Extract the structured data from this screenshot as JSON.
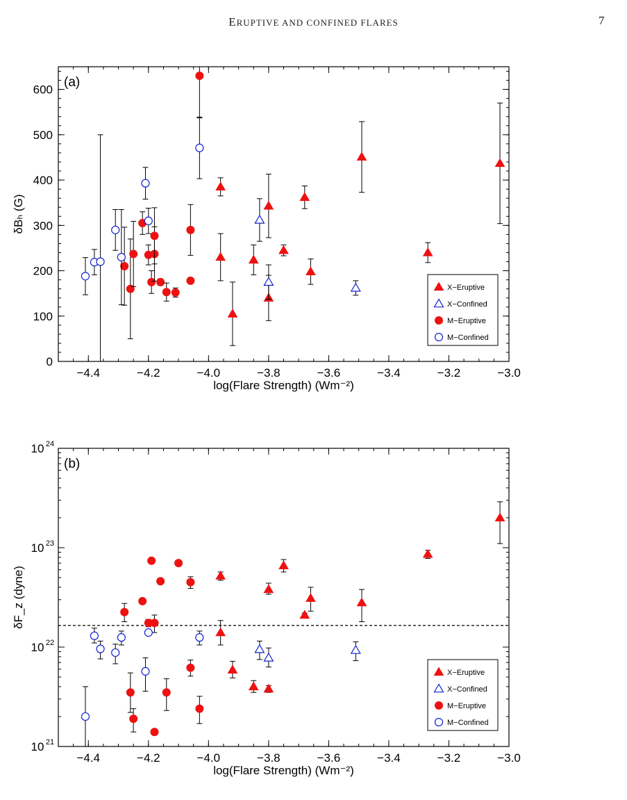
{
  "page": {
    "header_first": "E",
    "header_rest": "RUPTIVE AND CONFINED FLARES",
    "page_number": "7"
  },
  "colors": {
    "eruptive": "#ee1111",
    "confined": "#1122cc",
    "axis": "#000000",
    "error_bar": "#000000"
  },
  "chart_data": [
    {
      "type": "scatter",
      "panel_label": "(a)",
      "xlabel": "log(Flare Strength) (Wm⁻²)",
      "ylabel": "δBₕ (G)",
      "xlim": [
        -4.5,
        -3.0
      ],
      "ylim": [
        0,
        650
      ],
      "y_scale": "linear",
      "x_ticks": [
        "−4.4",
        "−4.2",
        "−4.0",
        "−3.8",
        "−3.6",
        "−3.4",
        "−3.2",
        "−3.0"
      ],
      "y_ticks": [
        "0",
        "100",
        "200",
        "300",
        "400",
        "500",
        "600"
      ],
      "legend_position": "lower-right",
      "legend": [
        "X−Eruptive",
        "X−Confined",
        "M−Eruptive",
        "M−Confined"
      ],
      "series": [
        {
          "name": "X−Eruptive",
          "marker": "triangle-filled",
          "points": [
            [
              -3.96,
              385,
              20
            ],
            [
              -3.96,
              230,
              52
            ],
            [
              -3.92,
              105,
              70
            ],
            [
              -3.85,
              224,
              33
            ],
            [
              -3.8,
              343,
              70
            ],
            [
              -3.8,
              140,
              50
            ],
            [
              -3.75,
              245,
              12
            ],
            [
              -3.68,
              362,
              25
            ],
            [
              -3.66,
              198,
              28
            ],
            [
              -3.49,
              451,
              78
            ],
            [
              -3.27,
              240,
              22
            ],
            [
              -3.03,
              437,
              133
            ]
          ]
        },
        {
          "name": "X−Confined",
          "marker": "triangle-open",
          "points": [
            [
              -3.83,
              312,
              47
            ],
            [
              -3.8,
              175,
              38
            ],
            [
              -3.51,
              162,
              16
            ]
          ]
        },
        {
          "name": "M−Eruptive",
          "marker": "circle-filled",
          "points": [
            [
              -4.28,
              210,
              86
            ],
            [
              -4.26,
              160,
              110
            ],
            [
              -4.25,
              237,
              72
            ],
            [
              -4.22,
              305,
              25
            ],
            [
              -4.2,
              235,
              22
            ],
            [
              -4.19,
              175,
              25
            ],
            [
              -4.18,
              237,
              60
            ],
            [
              -4.18,
              277,
              62
            ],
            [
              -4.16,
              175,
              7
            ],
            [
              -4.14,
              153,
              20
            ],
            [
              -4.11,
              152,
              10
            ],
            [
              -4.06,
              290,
              56
            ],
            [
              -4.06,
              178,
              5
            ],
            [
              -4.03,
              630,
              93
            ]
          ]
        },
        {
          "name": "M−Confined",
          "marker": "circle-open",
          "points": [
            [
              -4.41,
              188,
              41
            ],
            [
              -4.38,
              219,
              28
            ],
            [
              -4.36,
              220,
              280
            ],
            [
              -4.31,
              290,
              45
            ],
            [
              -4.29,
              230,
              105
            ],
            [
              -4.21,
              393,
              35
            ],
            [
              -4.2,
              310,
              28
            ],
            [
              -4.03,
              471,
              68
            ]
          ]
        }
      ]
    },
    {
      "type": "scatter",
      "panel_label": "(b)",
      "xlabel": "log(Flare Strength) (Wm⁻²)",
      "ylabel": "δF_z (dyne)",
      "xlim": [
        -4.5,
        -3.0
      ],
      "ylim": [
        1e+21,
        1e+24
      ],
      "y_scale": "log",
      "x_ticks": [
        "−4.4",
        "−4.2",
        "−4.0",
        "−3.8",
        "−3.6",
        "−3.4",
        "−3.2",
        "−3.0"
      ],
      "y_ticks": [
        {
          "base": "10",
          "exp": "21"
        },
        {
          "base": "10",
          "exp": "22"
        },
        {
          "base": "10",
          "exp": "23"
        },
        {
          "base": "10",
          "exp": "24"
        }
      ],
      "reference_line": 1.65e+22,
      "legend_position": "lower-right",
      "legend": [
        "X−Eruptive",
        "X−Confined",
        "M−Eruptive",
        "M−Confined"
      ],
      "series": [
        {
          "name": "X−Eruptive",
          "marker": "triangle-filled",
          "points": [
            [
              -3.96,
              5.2e+22,
              4.7e+22,
              5.7e+22
            ],
            [
              -3.96,
              1.4e+22,
              1.05e+22,
              1.85e+22
            ],
            [
              -3.92,
              5.9e+21,
              4.9e+21,
              7.2e+21
            ],
            [
              -3.85,
              4e+21,
              3.5e+21,
              4.6e+21
            ],
            [
              -3.8,
              3.8e+22,
              3.4e+22,
              4.4e+22
            ],
            [
              -3.8,
              3.8e+21,
              3.5e+21,
              4.1e+21
            ],
            [
              -3.75,
              6.6e+22,
              5.7e+22,
              7.6e+22
            ],
            [
              -3.68,
              2.1e+22,
              2e+22,
              2.2e+22
            ],
            [
              -3.66,
              3.1e+22,
              2.3e+22,
              4e+22
            ],
            [
              -3.49,
              2.8e+22,
              1.8e+22,
              3.8e+22
            ],
            [
              -3.27,
              8.6e+22,
              7.8e+22,
              9.4e+22
            ],
            [
              -3.03,
              2e+23,
              1.1e+23,
              2.9e+23
            ]
          ]
        },
        {
          "name": "X−Confined",
          "marker": "triangle-open",
          "points": [
            [
              -3.83,
              9.5e+21,
              7.5e+21,
              1.15e+22
            ],
            [
              -3.8,
              7.8e+21,
              6.3e+21,
              9.8e+21
            ],
            [
              -3.51,
              9.3e+21,
              7.3e+21,
              1.13e+22
            ]
          ]
        },
        {
          "name": "M−Eruptive",
          "marker": "circle-filled",
          "points": [
            [
              -4.28,
              2.25e+22,
              1.8e+22,
              2.75e+22
            ],
            [
              -4.26,
              3.5e+21,
              2.2e+21,
              5.5e+21
            ],
            [
              -4.25,
              1.9e+21,
              1.4e+21,
              2.4e+21
            ],
            [
              -4.22,
              2.9e+22,
              2.9e+22,
              2.9e+22
            ],
            [
              -4.2,
              1.75e+22,
              1.6e+22,
              1.9e+22
            ],
            [
              -4.19,
              7.4e+22,
              7.4e+22,
              7.4e+22
            ],
            [
              -4.18,
              1.75e+22,
              1.4e+22,
              2.1e+22
            ],
            [
              -4.18,
              1.4e+21,
              1.4e+21,
              1.4e+21
            ],
            [
              -4.16,
              4.6e+22,
              4.6e+22,
              4.6e+22
            ],
            [
              -4.14,
              3.5e+21,
              2.3e+21,
              4.8e+21
            ],
            [
              -4.1,
              7e+22,
              6.6e+22,
              7.4e+22
            ],
            [
              -4.06,
              4.5e+22,
              3.9e+22,
              5.1e+22
            ],
            [
              -4.06,
              6.2e+21,
              5.1e+21,
              7.4e+21
            ],
            [
              -4.03,
              2.4e+21,
              1.7e+21,
              3.2e+21
            ]
          ]
        },
        {
          "name": "M−Confined",
          "marker": "circle-open",
          "points": [
            [
              -4.41,
              2e+21,
              1e+21,
              4e+21
            ],
            [
              -4.38,
              1.3e+22,
              1.1e+22,
              1.55e+22
            ],
            [
              -4.36,
              9.6e+21,
              7.6e+21,
              1.15e+22
            ],
            [
              -4.31,
              8.8e+21,
              6.8e+21,
              1.07e+22
            ],
            [
              -4.29,
              1.25e+22,
              1.05e+22,
              1.45e+22
            ],
            [
              -4.21,
              5.7e+21,
              3.6e+21,
              7.8e+21
            ],
            [
              -4.2,
              1.4e+22,
              1.4e+22,
              1.4e+22
            ],
            [
              -4.03,
              1.25e+22,
              1.05e+22,
              1.45e+22
            ]
          ]
        }
      ]
    }
  ]
}
